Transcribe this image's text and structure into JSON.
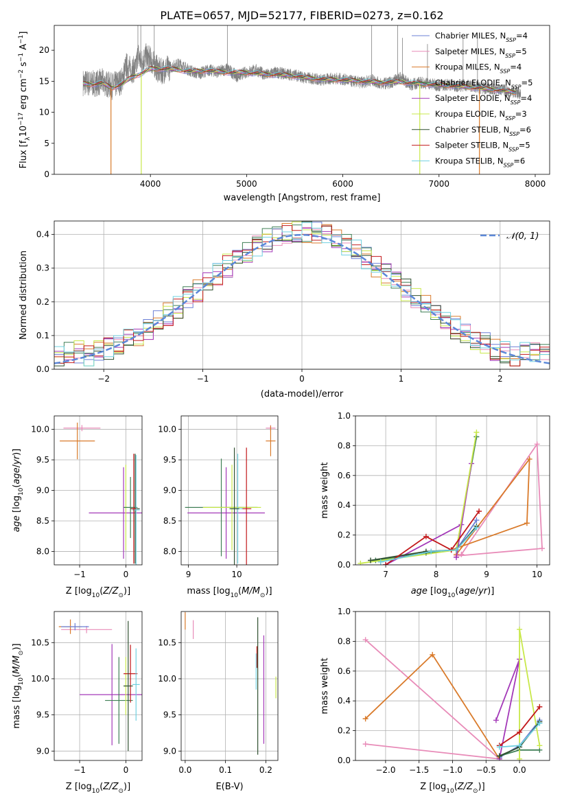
{
  "figure": {
    "title": "PLATE=0657, MJD=52177, FIBERID=0273, z=0.162",
    "model_colors": [
      "#6a7fd6",
      "#e88bb8",
      "#d97a2a",
      "#3f7f55",
      "#a338b8",
      "#c8e84a",
      "#2f4f2f",
      "#c2181a",
      "#6fd0e0"
    ],
    "model_names": [
      "Chabrier MILES",
      "Salpeter MILES",
      "Kroupa MILES",
      "Chabrier ELODIE",
      "Salpeter ELODIE",
      "Kroupa ELODIE",
      "Chabrier STELIB",
      "Salpeter STELIB",
      "Kroupa STELIB"
    ],
    "n_ssp": [
      "4",
      "5",
      "4",
      "5",
      "4",
      "3",
      "6",
      "5",
      "6"
    ]
  },
  "chart_data": [
    {
      "id": "spectrum",
      "type": "line",
      "title": "PLATE=0657, MJD=52177, FIBERID=0273, z=0.162",
      "xlabel": "wavelength [Angstrom, rest frame]",
      "ylabel": "Flux [f_λ10^-17 erg cm^-2 s^-1 A^-1]",
      "xlim": [
        3000,
        8150
      ],
      "ylim": [
        0,
        24
      ],
      "xticks": [
        4000,
        5000,
        6000,
        7000,
        8000
      ],
      "yticks": [
        0,
        5,
        10,
        15,
        20
      ],
      "data_series": {
        "name": "observed spectrum",
        "color": "#808080",
        "x": [
          3300,
          3400,
          3500,
          3600,
          3700,
          3750,
          3800,
          3850,
          3870,
          3900,
          3950,
          4000,
          4050,
          4100,
          4200,
          4300,
          4400,
          4500,
          4600,
          4700,
          4800,
          4900,
          5000,
          5100,
          5200,
          5300,
          5400,
          5500,
          5600,
          5700,
          5800,
          5900,
          6000,
          6100,
          6200,
          6300,
          6400,
          6500,
          6600,
          6700,
          6800,
          6900,
          7000,
          7100,
          7200,
          7300,
          7400,
          7500,
          7600,
          7700,
          7800,
          7850
        ],
        "y": [
          14.8,
          14.6,
          14.9,
          14.2,
          15.0,
          17.5,
          16.8,
          17.0,
          19.5,
          18.0,
          19.0,
          18.5,
          17.5,
          16.5,
          17.2,
          17.8,
          16.8,
          16.2,
          16.8,
          16.5,
          17.0,
          15.8,
          16.5,
          16.8,
          16.0,
          16.4,
          16.2,
          16.0,
          15.6,
          15.4,
          15.2,
          15.5,
          15.3,
          15.0,
          14.8,
          15.2,
          14.6,
          14.8,
          15.6,
          14.4,
          14.8,
          14.6,
          14.3,
          14.5,
          14.2,
          14.4,
          14.0,
          13.8,
          13.7,
          13.5,
          13.2,
          13.0
        ]
      },
      "spikes": [
        {
          "x": 3870,
          "y": 24
        },
        {
          "x": 3900,
          "y": 24
        },
        {
          "x": 4040,
          "y": 24
        },
        {
          "x": 4800,
          "y": 24
        },
        {
          "x": 6300,
          "y": 24
        },
        {
          "x": 6570,
          "y": 24
        },
        {
          "x": 6620,
          "y": 22
        },
        {
          "x": 6880,
          "y": 21
        },
        {
          "x": 7250,
          "y": 22
        },
        {
          "x": 7400,
          "y": 22
        }
      ],
      "dips": [
        {
          "x": 3590,
          "y": 0
        },
        {
          "x": 3905,
          "y": 0
        },
        {
          "x": 6800,
          "y": 0
        },
        {
          "x": 7420,
          "y": 0
        }
      ],
      "model_x": [
        3300,
        3400,
        3500,
        3600,
        3700,
        3800,
        3900,
        4000,
        4200,
        4400,
        4600,
        4800,
        5000,
        5200,
        5400,
        5600,
        5800,
        6000,
        6200,
        6400,
        6600,
        6800,
        7000,
        7200,
        7400,
        7600,
        7800
      ],
      "model_y": [
        14.6,
        14.5,
        14.7,
        13.9,
        14.5,
        15.6,
        16.2,
        17.0,
        17.0,
        16.6,
        16.7,
        16.4,
        16.4,
        16.1,
        16.0,
        15.6,
        15.3,
        15.2,
        15.0,
        14.8,
        14.9,
        14.6,
        14.4,
        14.2,
        13.9,
        13.6,
        13.2
      ],
      "legend": {
        "position": "top-right",
        "entries": [
          {
            "label": "Chabrier MILES, N",
            "sub": "SSP",
            "suffix": "=4"
          },
          {
            "label": "Salpeter MILES, N",
            "sub": "SSP",
            "suffix": "=5"
          },
          {
            "label": "Kroupa MILES, N",
            "sub": "SSP",
            "suffix": "=4"
          },
          {
            "label": "Chabrier ELODIE, N",
            "sub": "SSP",
            "suffix": "=5"
          },
          {
            "label": "Salpeter ELODIE, N",
            "sub": "SSP",
            "suffix": "=4"
          },
          {
            "label": "Kroupa ELODIE, N",
            "sub": "SSP",
            "suffix": "=3"
          },
          {
            "label": "Chabrier STELIB, N",
            "sub": "SSP",
            "suffix": "=6"
          },
          {
            "label": "Salpeter STELIB, N",
            "sub": "SSP",
            "suffix": "=5"
          },
          {
            "label": "Kroupa STELIB, N",
            "sub": "SSP",
            "suffix": "=6"
          }
        ]
      }
    },
    {
      "id": "residuals",
      "type": "line",
      "xlabel": "(data-model)/error",
      "ylabel": "Normed distribution",
      "xlim": [
        -2.5,
        2.5
      ],
      "ylim": [
        0,
        0.44
      ],
      "xticks": [
        -2,
        -1,
        0,
        1,
        2
      ],
      "yticks": [
        0.0,
        0.1,
        0.2,
        0.3,
        0.4
      ],
      "grid": true,
      "reference": {
        "label": "𝒩(0, 1)",
        "mean": 0,
        "sigma": 1,
        "color": "#5b87d8",
        "style": "dashed"
      },
      "legend": {
        "position": "top-right"
      },
      "bin_edges": [
        -2.5,
        2.5
      ],
      "bin_width": 0.1
    },
    {
      "id": "age-vs-Z",
      "type": "scatter",
      "xlabel": "Z [log10(Z/Z⊙)]",
      "ylabel": "age [log10(age/yr)]",
      "xlim": [
        -1.55,
        0.35
      ],
      "ylim": [
        7.78,
        10.22
      ],
      "xticks": [
        -1,
        0
      ],
      "yticks": [
        8.0,
        8.5,
        9.0,
        9.5,
        10.0
      ],
      "grid": true,
      "points": [
        {
          "model": 1,
          "x": -0.95,
          "y": 10.02,
          "xerr": 0.4,
          "yerr": 0.05
        },
        {
          "model": 2,
          "x": -1.05,
          "y": 9.81,
          "xerr": 0.38,
          "yerr": 0.3
        },
        {
          "model": 4,
          "x": -0.05,
          "y": 8.63,
          "xerr": 0.75,
          "yerr": 0.75
        },
        {
          "model": 5,
          "x": 0.0,
          "y": 8.72,
          "xerr": 0.05,
          "yerr": 0.7
        },
        {
          "model": 3,
          "x": 0.1,
          "y": 8.72,
          "xerr": 0.15,
          "yerr": 0.5
        },
        {
          "model": 6,
          "x": 0.2,
          "y": 8.7,
          "xerr": 0.1,
          "yerr": 0.9
        },
        {
          "model": 8,
          "x": 0.22,
          "y": 8.68,
          "xerr": 0.08,
          "yerr": 0.9
        },
        {
          "model": 7,
          "x": 0.17,
          "y": 8.7,
          "xerr": 0.05,
          "yerr": 0.9
        }
      ]
    },
    {
      "id": "age-vs-mass",
      "type": "scatter",
      "xlabel": "mass [log10(M/M⊙)]",
      "xlim": [
        8.85,
        10.85
      ],
      "ylim": [
        7.78,
        10.22
      ],
      "xticks": [
        9,
        10
      ],
      "yticks": [
        8.0,
        8.5,
        9.0,
        9.5,
        10.0
      ],
      "grid": true,
      "points": [
        {
          "model": 1,
          "x": 10.7,
          "y": 10.02,
          "xerr": 0.1,
          "yerr": 0.05
        },
        {
          "model": 2,
          "x": 10.7,
          "y": 9.81,
          "xerr": 0.1,
          "yerr": 0.25
        },
        {
          "model": 4,
          "x": 9.78,
          "y": 8.63,
          "xerr": 0.8,
          "yerr": 0.75
        },
        {
          "model": 3,
          "x": 9.68,
          "y": 8.72,
          "xerr": 0.75,
          "yerr": 0.8
        },
        {
          "model": 5,
          "x": 9.9,
          "y": 8.72,
          "xerr": 0.6,
          "yerr": 0.7
        },
        {
          "model": 7,
          "x": 10.2,
          "y": 8.7,
          "xerr": 0.1,
          "yerr": 1.0
        },
        {
          "model": 8,
          "x": 10.02,
          "y": 8.7,
          "xerr": 0.1,
          "yerr": 0.9
        },
        {
          "model": 6,
          "x": 9.95,
          "y": 8.7,
          "xerr": 0.1,
          "yerr": 1.0
        }
      ]
    },
    {
      "id": "massweight-vs-age",
      "type": "line",
      "xlabel": "age [log10(age/yr)]",
      "ylabel": "mass weight",
      "xlim": [
        6.4,
        10.25
      ],
      "ylim": [
        0,
        1.0
      ],
      "xticks": [
        7,
        8,
        9,
        10
      ],
      "yticks": [
        0.0,
        0.2,
        0.4,
        0.6,
        0.8,
        1.0
      ],
      "grid": true,
      "series": [
        {
          "model": 0,
          "x": [
            6.9,
            7.9,
            8.4,
            8.8
          ],
          "y": [
            0.02,
            0.09,
            0.1,
            0.3
          ]
        },
        {
          "model": 1,
          "x": [
            8.5,
            10.0,
            10.1,
            8.4
          ],
          "y": [
            0.07,
            0.81,
            0.11,
            0.06
          ]
        },
        {
          "model": 2,
          "x": [
            8.3,
            9.8,
            9.85,
            8.4
          ],
          "y": [
            0.1,
            0.28,
            0.71,
            0.07
          ]
        },
        {
          "model": 3,
          "x": [
            6.8,
            7.8,
            8.4,
            8.8
          ],
          "y": [
            0.03,
            0.08,
            0.1,
            0.86
          ]
        },
        {
          "model": 4,
          "x": [
            7.0,
            8.5,
            8.7,
            8.4
          ],
          "y": [
            0.0,
            0.27,
            0.68,
            0.05
          ]
        },
        {
          "model": 5,
          "x": [
            6.5,
            8.4,
            8.8
          ],
          "y": [
            0.01,
            0.1,
            0.89
          ]
        },
        {
          "model": 6,
          "x": [
            6.7,
            7.8,
            8.4,
            8.8
          ],
          "y": [
            0.03,
            0.09,
            0.1,
            0.26
          ]
        },
        {
          "model": 7,
          "x": [
            7.0,
            7.8,
            8.3,
            8.85
          ],
          "y": [
            0.0,
            0.19,
            0.1,
            0.36
          ]
        },
        {
          "model": 8,
          "x": [
            6.9,
            7.9,
            8.4,
            8.8
          ],
          "y": [
            0.02,
            0.09,
            0.1,
            0.25
          ]
        }
      ]
    },
    {
      "id": "mass-vs-Z",
      "type": "scatter",
      "xlabel": "Z [log10(Z/Z⊙)]",
      "ylabel": "mass [log10(M/M⊙)]",
      "xlim": [
        -1.55,
        0.35
      ],
      "ylim": [
        8.87,
        10.93
      ],
      "xticks": [
        -1,
        0
      ],
      "yticks": [
        9.0,
        9.5,
        10.0,
        10.5
      ],
      "grid": true,
      "points": [
        {
          "model": 1,
          "x": -0.85,
          "y": 10.68,
          "xerr": 0.55,
          "yerr": 0.05
        },
        {
          "model": 2,
          "x": -1.2,
          "y": 10.72,
          "xerr": 0.25,
          "yerr": 0.1
        },
        {
          "model": 0,
          "x": -1.1,
          "y": 10.72,
          "xerr": 0.3,
          "yerr": 0.05
        },
        {
          "model": 4,
          "x": -0.3,
          "y": 9.78,
          "xerr": 0.7,
          "yerr": 0.7
        },
        {
          "model": 3,
          "x": -0.15,
          "y": 9.7,
          "xerr": 0.3,
          "yerr": 0.6
        },
        {
          "model": 5,
          "x": 0.0,
          "y": 9.9,
          "xerr": 0.05,
          "yerr": 0.4
        },
        {
          "model": 7,
          "x": 0.1,
          "y": 10.07,
          "xerr": 0.15,
          "yerr": 0.4
        },
        {
          "model": 6,
          "x": 0.05,
          "y": 9.9,
          "xerr": 0.1,
          "yerr": 0.9
        },
        {
          "model": 8,
          "x": 0.22,
          "y": 9.92,
          "xerr": 0.08,
          "yerr": 0.5
        }
      ]
    },
    {
      "id": "mass-vs-EBV",
      "type": "scatter",
      "xlabel": "E(B-V)",
      "xlim": [
        -0.01,
        0.23
      ],
      "ylim": [
        8.87,
        10.93
      ],
      "xticks": [
        0.0,
        0.1,
        0.2
      ],
      "yticks": [
        9.0,
        9.5,
        10.0,
        10.5
      ],
      "grid": true,
      "points": [
        {
          "model": 1,
          "x": 0.02,
          "y": 10.68,
          "xerr": 0.0,
          "yerr": 0.13
        },
        {
          "model": 2,
          "x": 0.0,
          "y": 10.8,
          "xerr": 0.0,
          "yerr": 0.12
        },
        {
          "model": 6,
          "x": 0.18,
          "y": 9.9,
          "xerr": 0.0,
          "yerr": 0.95
        },
        {
          "model": 4,
          "x": 0.195,
          "y": 9.85,
          "xerr": 0.0,
          "yerr": 0.75
        },
        {
          "model": 7,
          "x": 0.178,
          "y": 10.3,
          "xerr": 0.0,
          "yerr": 0.15
        },
        {
          "model": 8,
          "x": 0.176,
          "y": 10.1,
          "xerr": 0.0,
          "yerr": 0.25
        },
        {
          "model": 5,
          "x": 0.225,
          "y": 9.88,
          "xerr": 0.0,
          "yerr": 0.15
        }
      ]
    },
    {
      "id": "massweight-vs-Z",
      "type": "line",
      "xlabel": "Z [log10(Z/Z⊙)]",
      "ylabel": "mass weight",
      "xlim": [
        -2.45,
        0.45
      ],
      "ylim": [
        0,
        1.0
      ],
      "xticks": [
        -2.0,
        -1.5,
        -1.0,
        -0.5,
        0.0
      ],
      "yticks": [
        0.0,
        0.2,
        0.4,
        0.6,
        0.8,
        1.0
      ],
      "grid": true,
      "series": [
        {
          "model": 0,
          "x": [
            -0.3,
            0.0,
            0.3
          ],
          "y": [
            0.02,
            0.1,
            0.27
          ]
        },
        {
          "model": 1,
          "x": [
            -2.3,
            -0.3,
            -2.3
          ],
          "y": [
            0.81,
            0.01,
            0.11
          ]
        },
        {
          "model": 2,
          "x": [
            -2.3,
            -1.3,
            -0.3
          ],
          "y": [
            0.28,
            0.71,
            0.01
          ]
        },
        {
          "model": 3,
          "x": [
            -0.3,
            0.0,
            0.3
          ],
          "y": [
            0.03,
            0.07,
            0.07
          ]
        },
        {
          "model": 4,
          "x": [
            -0.35,
            0.0,
            -0.3
          ],
          "y": [
            0.27,
            0.68,
            0.01
          ]
        },
        {
          "model": 5,
          "x": [
            0.0,
            0.0,
            0.3
          ],
          "y": [
            0.01,
            0.88,
            0.1
          ]
        },
        {
          "model": 6,
          "x": [
            -0.3,
            0.0,
            0.3
          ],
          "y": [
            0.03,
            0.09,
            0.26
          ]
        },
        {
          "model": 7,
          "x": [
            -0.3,
            0.0,
            0.3
          ],
          "y": [
            0.1,
            0.19,
            0.36
          ]
        },
        {
          "model": 8,
          "x": [
            -0.3,
            0.0,
            0.3
          ],
          "y": [
            0.09,
            0.1,
            0.25
          ]
        }
      ]
    }
  ]
}
